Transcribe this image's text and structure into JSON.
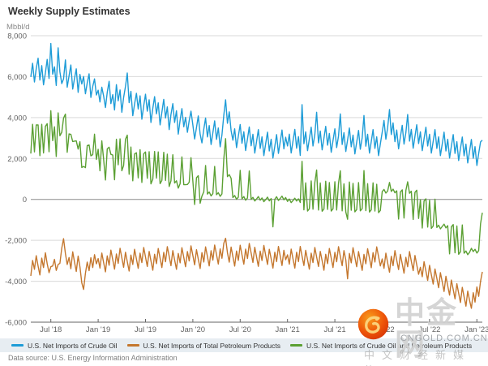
{
  "title": "Weekly Supply Estimates",
  "y_axis_unit": "Mbbl/d",
  "source": "Data source: U.S. Energy Information Administration",
  "watermark": {
    "logo": "cngold-swirl-logo",
    "brand": "中金网",
    "domain": "CNGOLD.COM.CN",
    "tagline": "中文财经新媒体"
  },
  "colors": {
    "crude_blue": "#1e9cd7",
    "products_orange": "#c4772e",
    "total_green": "#5ba033",
    "gridline": "#d9d9d9",
    "zero_line": "#8c8c8c",
    "axis_line": "#666666",
    "legend_bg": "#e7edf2"
  },
  "chart_data": {
    "type": "line",
    "title": "Weekly Supply Estimates",
    "xlabel": "",
    "ylabel": "Mbbl/d",
    "ylim": [
      -6000,
      8000
    ],
    "grid": "horizontal",
    "legend_position": "bottom",
    "x_unit": "week",
    "y_ticks": [
      {
        "value": 8000,
        "label": "8,000"
      },
      {
        "value": 6000,
        "label": "6,000"
      },
      {
        "value": 4000,
        "label": "4,000"
      },
      {
        "value": 2000,
        "label": "2,000"
      },
      {
        "value": 0,
        "label": "0"
      },
      {
        "value": -2000,
        "label": "-2,000"
      },
      {
        "value": -4000,
        "label": "-4,000"
      },
      {
        "value": -6000,
        "label": "-6,000"
      }
    ],
    "x_ticks": [
      {
        "week": 11,
        "label": "Jul '18"
      },
      {
        "week": 37,
        "label": "Jan '19"
      },
      {
        "week": 63,
        "label": "Jul '19"
      },
      {
        "week": 89,
        "label": "Jan '20"
      },
      {
        "week": 115,
        "label": "Jul '20"
      },
      {
        "week": 141,
        "label": "Jan '21"
      },
      {
        "week": 167,
        "label": "Jul '21"
      },
      {
        "week": 193,
        "label": "Jan '22"
      },
      {
        "week": 219,
        "label": "Jul '22"
      },
      {
        "week": 245,
        "label": "Jan '23"
      }
    ],
    "series": [
      {
        "name": "U.S. Net Imports of Crude Oil",
        "color": "#1e9cd7",
        "values": [
          5980,
          6650,
          5740,
          6390,
          6900,
          5830,
          6540,
          5600,
          6180,
          6840,
          5910,
          7620,
          6120,
          6480,
          5570,
          7410,
          6230,
          5660,
          5890,
          6820,
          5480,
          6040,
          6570,
          5390,
          5910,
          6380,
          5230,
          6110,
          5640,
          6010,
          5160,
          5690,
          6140,
          4980,
          5520,
          5890,
          5100,
          5340,
          4760,
          5480,
          5060,
          4490,
          5230,
          5770,
          4680,
          5120,
          4370,
          5610,
          4820,
          5350,
          4260,
          4980,
          5520,
          6180,
          4730,
          5280,
          4090,
          4660,
          5190,
          4420,
          5060,
          3920,
          4580,
          5140,
          4310,
          4870,
          3760,
          4450,
          5020,
          4180,
          4720,
          3640,
          4260,
          4890,
          3980,
          4520,
          3410,
          4150,
          4680,
          3760,
          4330,
          3190,
          3870,
          4440,
          3550,
          4010,
          3280,
          3850,
          4310,
          3640,
          2950,
          3520,
          4080,
          3190,
          2760,
          3430,
          3980,
          3050,
          3610,
          2680,
          3260,
          3840,
          2930,
          3490,
          2570,
          3150,
          4120,
          4870,
          3720,
          4280,
          3360,
          2890,
          3450,
          2530,
          3090,
          3660,
          2740,
          3310,
          2390,
          2960,
          3540,
          2620,
          3180,
          2260,
          2830,
          3410,
          2490,
          3060,
          2140,
          2710,
          3290,
          2370,
          2940,
          2020,
          2590,
          3170,
          2250,
          2820,
          3390,
          2470,
          3040,
          2610,
          3190,
          2270,
          2840,
          3420,
          2500,
          3070,
          2150,
          4630,
          2720,
          3300,
          2380,
          2950,
          3530,
          2610,
          3180,
          4260,
          2760,
          3340,
          2420,
          2990,
          3570,
          2650,
          3220,
          2300,
          2870,
          3450,
          2530,
          3100,
          4180,
          2680,
          3260,
          2340,
          2910,
          3490,
          2570,
          3140,
          2220,
          2790,
          3370,
          2450,
          3020,
          4100,
          2600,
          3180,
          2260,
          2830,
          3410,
          2490,
          3060,
          2140,
          2710,
          3290,
          3860,
          2940,
          3510,
          4390,
          3170,
          3740,
          2820,
          3390,
          2470,
          3050,
          3620,
          2700,
          3270,
          4150,
          2850,
          3420,
          2500,
          3080,
          3650,
          2730,
          3300,
          2380,
          2960,
          3530,
          2610,
          3180,
          2260,
          2840,
          3410,
          2490,
          3060,
          2140,
          2720,
          3290,
          2370,
          2940,
          2020,
          2600,
          3170,
          2250,
          2820,
          1900,
          2480,
          3050,
          2130,
          2700,
          1780,
          2360,
          2930,
          2010,
          2580,
          1660,
          2240,
          2810,
          2890
        ]
      },
      {
        "name": "U.S. Net Imports of Total Petroleum Products",
        "color": "#c4772e",
        "values": [
          -3740,
          -2980,
          -3420,
          -2750,
          -3260,
          -3690,
          -2870,
          -3330,
          -2610,
          -3140,
          -3580,
          -3290,
          -3250,
          -2930,
          -3470,
          -3180,
          -3120,
          -2380,
          -1920,
          -2650,
          -3180,
          -2840,
          -3390,
          -2560,
          -3060,
          -3520,
          -2770,
          -3290,
          -4080,
          -4400,
          -3610,
          -3060,
          -3480,
          -2850,
          -3330,
          -2700,
          -3150,
          -2890,
          -3360,
          -2620,
          -3080,
          -3540,
          -2760,
          -3220,
          -2480,
          -2950,
          -3410,
          -2670,
          -3130,
          -2390,
          -2860,
          -3320,
          -2580,
          -3040,
          -3500,
          -2720,
          -3180,
          -2440,
          -2910,
          -3370,
          -2630,
          -3090,
          -2350,
          -2820,
          -3280,
          -2540,
          -3000,
          -3460,
          -2680,
          -3140,
          -2400,
          -2870,
          -3330,
          -2590,
          -3050,
          -2310,
          -2780,
          -3240,
          -2500,
          -2960,
          -3420,
          -2640,
          -3100,
          -2360,
          -2830,
          -3290,
          -2550,
          -3010,
          -2270,
          -2740,
          -3200,
          -2460,
          -2920,
          -3380,
          -2600,
          -3060,
          -2320,
          -2790,
          -3250,
          -2510,
          -2970,
          -2230,
          -2700,
          -3160,
          -2420,
          -2880,
          -2140,
          -1900,
          -2610,
          -3070,
          -2330,
          -2800,
          -3260,
          -2520,
          -2980,
          -2240,
          -2710,
          -3170,
          -2430,
          -2890,
          -2150,
          -2620,
          -3080,
          -2340,
          -2810,
          -3270,
          -2530,
          -2990,
          -2250,
          -2720,
          -3180,
          -2440,
          -2900,
          -3360,
          -2580,
          -3040,
          -2300,
          -2770,
          -3230,
          -2490,
          -2950,
          -2710,
          -3170,
          -2430,
          -2900,
          -3360,
          -2580,
          -3040,
          -2300,
          -2770,
          -3230,
          -2490,
          -2950,
          -3410,
          -2630,
          -3090,
          -2350,
          -2820,
          -3280,
          -2540,
          -3000,
          -3460,
          -2680,
          -3140,
          -2400,
          -2870,
          -3330,
          -2590,
          -3050,
          -2310,
          -2780,
          -3240,
          -2500,
          -2960,
          -3880,
          -2640,
          -3100,
          -2360,
          -2830,
          -3290,
          -2550,
          -3010,
          -3470,
          -2690,
          -3150,
          -2410,
          -2880,
          -3340,
          -2600,
          -3060,
          -2320,
          -2790,
          -3250,
          -2910,
          -3370,
          -2630,
          -3100,
          -3560,
          -2780,
          -3240,
          -2500,
          -2970,
          -3430,
          -2690,
          -3150,
          -3610,
          -2830,
          -3290,
          -2550,
          -3020,
          -3480,
          -2740,
          -3200,
          -3660,
          -3320,
          -3780,
          -3040,
          -3500,
          -3960,
          -3220,
          -3680,
          -4140,
          -3400,
          -3860,
          -4320,
          -3580,
          -4040,
          -4500,
          -3760,
          -4220,
          -4680,
          -3940,
          -4400,
          -4860,
          -4120,
          -4580,
          -5040,
          -4300,
          -4760,
          -5220,
          -4480,
          -4940,
          -5320,
          -4560,
          -5020,
          -4280,
          -4740,
          -4000,
          -3540
        ]
      },
      {
        "name": "U.S. Net Imports of Crude Oil and Petroleum Products",
        "color": "#5ba033",
        "values": [
          2240,
          3670,
          2320,
          3640,
          3640,
          2140,
          3670,
          2270,
          3570,
          3700,
          2330,
          4330,
          2870,
          3550,
          2100,
          4230,
          3110,
          3280,
          3970,
          4170,
          2300,
          3200,
          3180,
          2830,
          2850,
          2860,
          2460,
          2820,
          1560,
          1610,
          1550,
          2630,
          2660,
          2130,
          2190,
          3190,
          1950,
          2450,
          1400,
          2860,
          1980,
          950,
          2470,
          2550,
          2200,
          2170,
          960,
          2940,
          1690,
          2960,
          1400,
          1660,
          2940,
          3140,
          1230,
          2560,
          910,
          2220,
          2280,
          1050,
          2430,
          830,
          2230,
          2320,
          1030,
          2330,
          760,
          990,
          2340,
          1040,
          2320,
          770,
          930,
          2300,
          930,
          2210,
          630,
          910,
          2180,
          800,
          910,
          550,
          770,
          2080,
          720,
          720,
          730,
          840,
          2040,
          900,
          -250,
          1060,
          1160,
          -190,
          160,
          370,
          1660,
          260,
          360,
          170,
          290,
          1610,
          230,
          330,
          150,
          270,
          1980,
          2970,
          1110,
          1210,
          1030,
          90,
          190,
          10,
          110,
          1420,
          30,
          140,
          -40,
          70,
          1390,
          0,
          100,
          -80,
          20,
          140,
          -40,
          70,
          -110,
          -10,
          110,
          -70,
          40,
          -1340,
          10,
          130,
          -50,
          50,
          160,
          -20,
          90,
          -100,
          20,
          -160,
          -60,
          60,
          -80,
          30,
          -150,
          1860,
          -510,
          810,
          -570,
          -460,
          900,
          -480,
          830,
          1440,
          -520,
          800,
          -580,
          -470,
          890,
          -490,
          820,
          -570,
          -460,
          860,
          -520,
          790,
          1400,
          -560,
          760,
          -620,
          -970,
          850,
          -530,
          780,
          -610,
          -500,
          820,
          -560,
          -450,
          1410,
          -550,
          770,
          -620,
          -510,
          810,
          -570,
          740,
          -650,
          -540,
          380,
          490,
          310,
          410,
          830,
          390,
          500,
          320,
          420,
          -960,
          360,
          470,
          -910,
          440,
          860,
          300,
          400,
          -980,
          340,
          450,
          -930,
          -20,
          -1400,
          -80,
          30,
          -1350,
          -40,
          -1420,
          -1300,
          10,
          -1370,
          -1260,
          -1440,
          -1320,
          -1210,
          -1390,
          -1280,
          -2660,
          -1340,
          -1230,
          -2610,
          -1300,
          -2680,
          -2560,
          -1250,
          -2630,
          -2520,
          -2700,
          -2580,
          -2390,
          -2550,
          -2440,
          -2620,
          -2500,
          -1190,
          -650
        ]
      }
    ]
  }
}
